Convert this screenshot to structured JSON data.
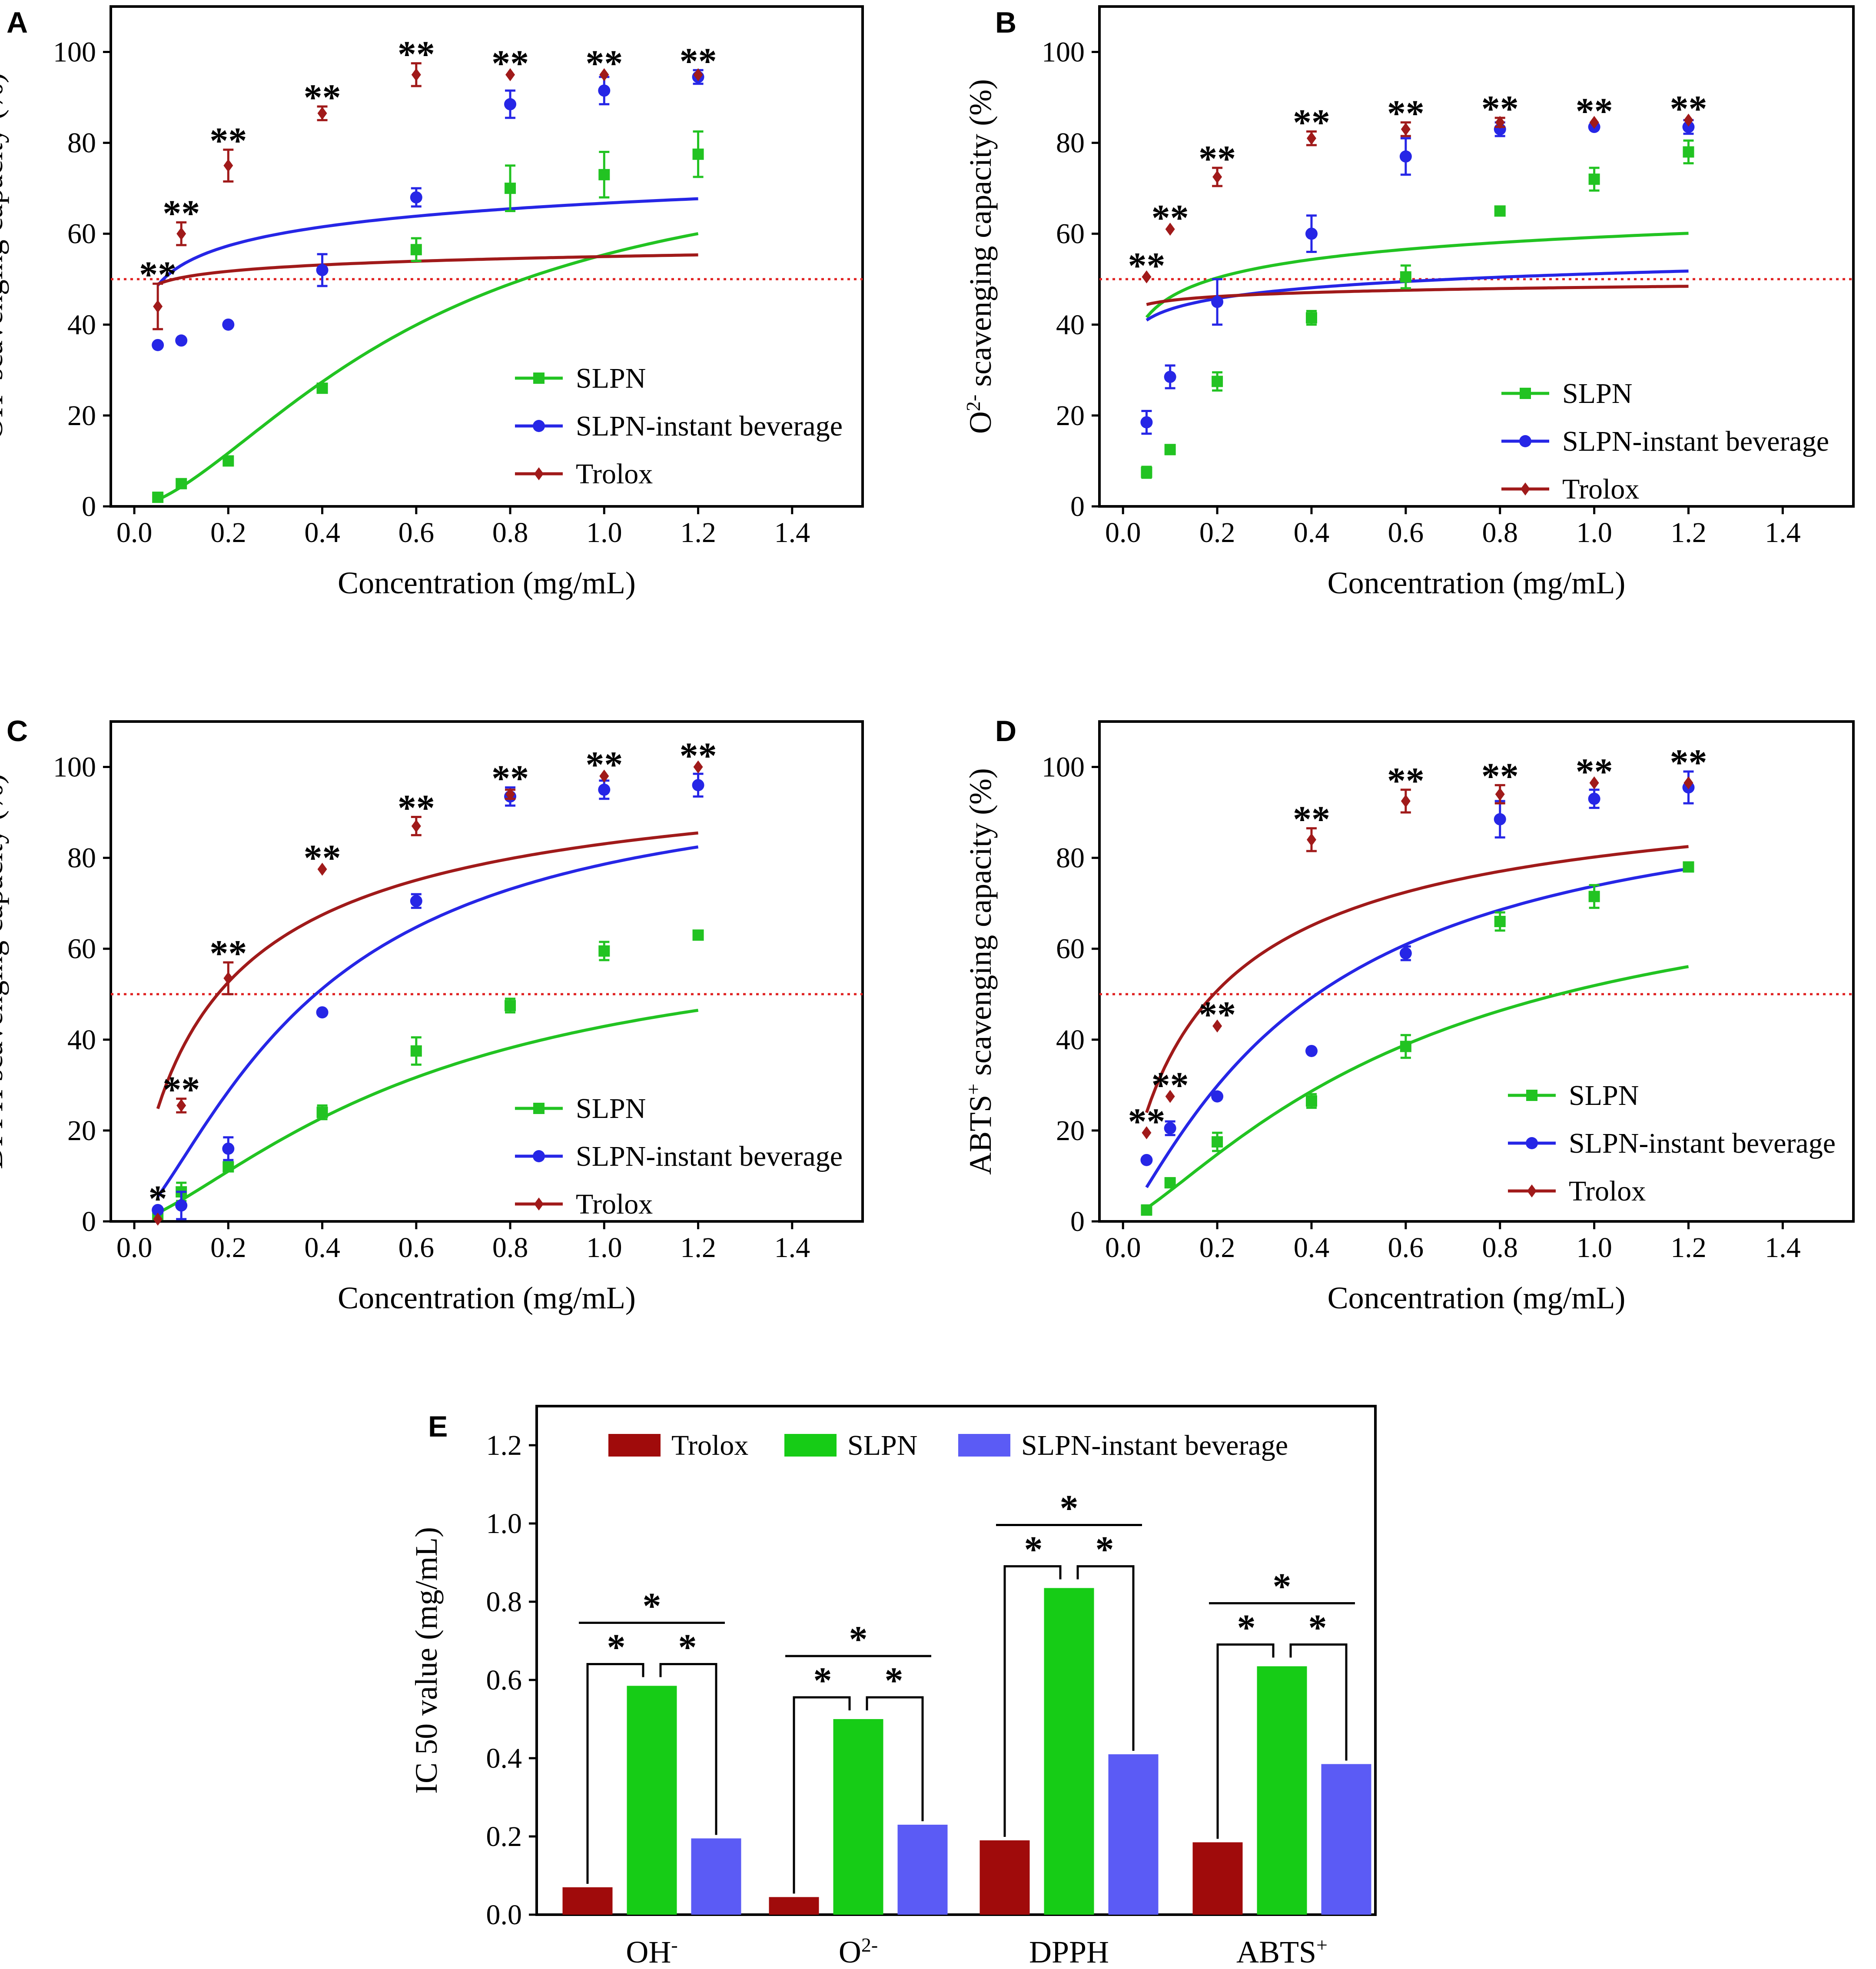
{
  "figure": {
    "panels": [
      "A",
      "B",
      "C",
      "D",
      "E"
    ]
  },
  "colors": {
    "slpn": "#22c322",
    "instant": "#2626e6",
    "trolox": "#a01a1a",
    "threshold": "#e02020",
    "bar_trolox": "#a00b0b",
    "bar_slpn": "#16cc16",
    "bar_instant": "#5b5bf5"
  },
  "chart_data": [
    {
      "type": "scatter",
      "panel": "A",
      "xlabel": "Concentration (mg/mL)",
      "ylabel": "OH⁻ scavenging capacity (%)",
      "xlim": [
        -0.05,
        1.55
      ],
      "ylim": [
        0,
        110
      ],
      "xticks": [
        "0.0",
        "0.2",
        "0.4",
        "0.6",
        "0.8",
        "1.0",
        "1.2",
        "1.4"
      ],
      "yticks": [
        "0",
        "20",
        "40",
        "60",
        "80",
        "100"
      ],
      "threshold": 50,
      "legend": [
        "SLPN",
        "SLPN-instant beverage",
        "Trolox"
      ],
      "x": [
        0.05,
        0.1,
        0.2,
        0.4,
        0.6,
        0.8,
        1.0,
        1.2
      ],
      "series": [
        {
          "name": "SLPN",
          "values": [
            2,
            5,
            10,
            26,
            56.5,
            70,
            73,
            77.5
          ],
          "err": [
            1.0,
            0.8,
            1.0,
            0.8,
            2.5,
            5,
            5,
            5
          ],
          "curve": [
            0.6,
            1.6,
            2.8
          ]
        },
        {
          "name": "SLPN-instant beverage",
          "values": [
            35.5,
            36.5,
            40,
            52,
            68,
            88.5,
            91.5,
            94.5
          ],
          "err": [
            0.5,
            0.5,
            0.5,
            3.5,
            2,
            3,
            3,
            1.5
          ],
          "curve": [
            0.05,
            0.26,
            1.0
          ]
        },
        {
          "name": "Trolox",
          "values": [
            44,
            60,
            75,
            86.5,
            95,
            95,
            95,
            95
          ],
          "err": [
            5,
            2.5,
            3.5,
            1.5,
            2.5,
            0.5,
            0.5,
            0.5
          ],
          "curve": [
            0.05,
            0.083,
            1.0
          ]
        }
      ],
      "annotations": [
        "**",
        "**",
        "**",
        "**",
        "**",
        "**",
        "**",
        "**"
      ]
    },
    {
      "type": "scatter",
      "panel": "B",
      "xlabel": "Concentration (mg/mL)",
      "ylabel": "O²⁻ scavenging capacity (%)",
      "xlim": [
        -0.05,
        1.55
      ],
      "ylim": [
        0,
        110
      ],
      "xticks": [
        "0.0",
        "0.2",
        "0.4",
        "0.6",
        "0.8",
        "1.0",
        "1.2",
        "1.4"
      ],
      "yticks": [
        "0",
        "20",
        "40",
        "60",
        "80",
        "100"
      ],
      "threshold": 50,
      "legend": [
        "SLPN",
        "SLPN-instant beverage",
        "Trolox"
      ],
      "x": [
        0.05,
        0.1,
        0.2,
        0.4,
        0.6,
        0.8,
        1.0,
        1.2
      ],
      "series": [
        {
          "name": "SLPN",
          "values": [
            7.5,
            12.5,
            27.5,
            41.5,
            50.5,
            65,
            72,
            78
          ],
          "err": [
            1.2,
            1.0,
            2,
            1.5,
            2.5,
            1,
            2.5,
            2.5
          ],
          "curve": [
            0.04,
            0.32,
            1.0
          ]
        },
        {
          "name": "SLPN-instant beverage",
          "values": [
            18.5,
            28.5,
            45,
            60,
            77,
            83,
            83.5,
            83.5
          ],
          "err": [
            2.5,
            2.5,
            5,
            4,
            4,
            1.5,
            0.5,
            1.5
          ],
          "curve": [
            0.09,
            0.16,
            1.0
          ]
        },
        {
          "name": "Trolox",
          "values": [
            50.5,
            61,
            72.5,
            81,
            83,
            84.5,
            84.5,
            85
          ],
          "err": [
            0.5,
            0.5,
            2,
            1.5,
            1.5,
            1,
            0.5,
            0.5
          ],
          "curve": [
            0.03,
            0.058,
            1.0
          ]
        }
      ],
      "annotations": [
        "**",
        "**",
        "**",
        "**",
        "**",
        "**",
        "**",
        "**"
      ]
    },
    {
      "type": "scatter",
      "panel": "C",
      "xlabel": "Concentration (mg/mL)",
      "ylabel": "DPPH scavenging capacity (%)",
      "xlim": [
        -0.05,
        1.55
      ],
      "ylim": [
        0,
        110
      ],
      "xticks": [
        "0.0",
        "0.2",
        "0.4",
        "0.6",
        "0.8",
        "1.0",
        "1.2",
        "1.4"
      ],
      "yticks": [
        "0",
        "20",
        "40",
        "60",
        "80",
        "100"
      ],
      "threshold": 50,
      "legend": [
        "SLPN",
        "SLPN-instant beverage",
        "Trolox"
      ],
      "x": [
        0.05,
        0.1,
        0.2,
        0.4,
        0.6,
        0.8,
        1.0,
        1.2
      ],
      "series": [
        {
          "name": "SLPN",
          "values": [
            1.5,
            6.5,
            12,
            24,
            37.5,
            47.5,
            59.5,
            63
          ],
          "err": [
            0.5,
            2,
            1,
            1.5,
            3,
            1.5,
            2,
            0.5
          ],
          "curve": [
            0.62,
            1.4,
            1.0
          ]
        },
        {
          "name": "SLPN-instant beverage",
          "values": [
            2.5,
            3.5,
            16,
            46,
            70.5,
            93.5,
            95,
            96
          ],
          "err": [
            0.5,
            3,
            2.5,
            0.5,
            1.5,
            2,
            2,
            2.5
          ],
          "curve": [
            0.38,
            1.4,
            3.2
          ]
        },
        {
          "name": "Trolox",
          "values": [
            0.5,
            25.5,
            53.5,
            77.5,
            87,
            94,
            98,
            100
          ],
          "err": [
            0.5,
            1.5,
            3.5,
            0.5,
            2,
            1,
            0.5,
            0.5
          ],
          "curve": [
            0.19,
            0.86,
            2.4
          ]
        }
      ],
      "annotations": [
        "*",
        "**",
        "**",
        "**",
        "**",
        "**",
        "**",
        "**"
      ]
    },
    {
      "type": "scatter",
      "panel": "D",
      "xlabel": "Concentration (mg/mL)",
      "ylabel": "ABTS⁺ scavenging capacity (%)",
      "xlim": [
        -0.05,
        1.55
      ],
      "ylim": [
        0,
        110
      ],
      "xticks": [
        "0.0",
        "0.2",
        "0.4",
        "0.6",
        "0.8",
        "1.0",
        "1.2",
        "1.4"
      ],
      "yticks": [
        "0",
        "20",
        "40",
        "60",
        "80",
        "100"
      ],
      "threshold": 50,
      "legend": [
        "SLPN",
        "SLPN-instant beverage",
        "Trolox"
      ],
      "x": [
        0.05,
        0.1,
        0.2,
        0.4,
        0.6,
        0.8,
        1.0,
        1.2
      ],
      "series": [
        {
          "name": "SLPN",
          "values": [
            2.5,
            8.5,
            17.5,
            26.5,
            38.5,
            66,
            71.5,
            78
          ],
          "err": [
            1,
            1,
            2,
            1.5,
            2.5,
            2,
            2.5,
            0.5
          ],
          "curve": [
            0.63,
            1.3,
            2.0
          ]
        },
        {
          "name": "SLPN-instant beverage",
          "values": [
            13.5,
            20.5,
            27.5,
            37.5,
            59,
            88.5,
            93,
            95.5
          ],
          "err": [
            0.5,
            1.5,
            0.5,
            0.5,
            1.5,
            4,
            2,
            3.5
          ],
          "curve": [
            0.4,
            1.2,
            1.4
          ]
        },
        {
          "name": "Trolox",
          "values": [
            19.5,
            27.5,
            43,
            84,
            92.5,
            94,
            96.5,
            96.5
          ],
          "err": [
            0.5,
            0.5,
            0.5,
            2.5,
            2.5,
            2,
            0.5,
            0.5
          ],
          "curve": [
            0.19,
            0.86,
            2.0
          ]
        }
      ],
      "annotations": [
        "**",
        "**",
        "**",
        "**",
        "**",
        "**",
        "**",
        "**"
      ]
    },
    {
      "type": "bar",
      "panel": "E",
      "ylabel": "IC 50 value (mg/mL)",
      "ylim": [
        0,
        1.3
      ],
      "yticks": [
        "0.0",
        "0.2",
        "0.4",
        "0.6",
        "0.8",
        "1.0",
        "1.2"
      ],
      "categories": [
        "OH⁻",
        "O²⁻",
        "DPPH",
        "ABTS⁺"
      ],
      "series": [
        {
          "name": "Trolox",
          "values": [
            0.07,
            0.045,
            0.19,
            0.185
          ]
        },
        {
          "name": "SLPN",
          "values": [
            0.585,
            0.5,
            0.835,
            0.635
          ]
        },
        {
          "name": "SLPN-instant beverage",
          "values": [
            0.195,
            0.23,
            0.41,
            0.385
          ]
        }
      ],
      "legend": [
        "Trolox",
        "SLPN",
        "SLPN-instant beverage"
      ],
      "significance": "*"
    }
  ]
}
